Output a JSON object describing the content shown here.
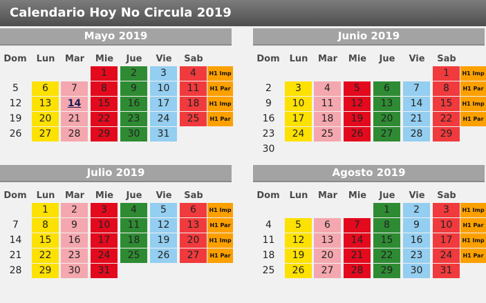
{
  "title": "Calendario Hoy No Circula 2019",
  "days": [
    "Dom",
    "Lun",
    "Mar",
    "Mie",
    "Jue",
    "Vie",
    "Sab"
  ],
  "tags": [
    "H1 Imp",
    "H1 Par",
    "H1 Imp",
    "H1 Par"
  ],
  "colors": {
    "Lun": "#fde100",
    "Mar": "#f4a7ae",
    "Mie": "#e30a1e",
    "Jue": "#2e8b33",
    "Vie": "#94cef0",
    "Sab": "#f03a3d",
    "tag": "#fca000"
  },
  "months": [
    {
      "name": "Mayo 2019",
      "rows": [
        [
          "",
          "",
          "",
          "1",
          "2",
          "3",
          "4"
        ],
        [
          "5",
          "6",
          "7",
          "8",
          "9",
          "10",
          "11"
        ],
        [
          "12",
          "13",
          "14",
          "15",
          "16",
          "17",
          "18"
        ],
        [
          "19",
          "20",
          "21",
          "22",
          "23",
          "24",
          "25"
        ],
        [
          "26",
          "27",
          "28",
          "29",
          "30",
          "31",
          ""
        ]
      ],
      "today": "14"
    },
    {
      "name": "Junio 2019",
      "rows": [
        [
          "",
          "",
          "",
          "",
          "",
          "",
          "1"
        ],
        [
          "2",
          "3",
          "4",
          "5",
          "6",
          "7",
          "8"
        ],
        [
          "9",
          "10",
          "11",
          "12",
          "13",
          "14",
          "15"
        ],
        [
          "16",
          "17",
          "18",
          "19",
          "20",
          "21",
          "22"
        ],
        [
          "23",
          "24",
          "25",
          "26",
          "27",
          "28",
          "29"
        ],
        [
          "30",
          "",
          "",
          "",
          "",
          "",
          ""
        ]
      ]
    },
    {
      "name": "Julio 2019",
      "rows": [
        [
          "",
          "1",
          "2",
          "3",
          "4",
          "5",
          "6"
        ],
        [
          "7",
          "8",
          "9",
          "10",
          "11",
          "12",
          "13"
        ],
        [
          "14",
          "15",
          "16",
          "17",
          "18",
          "19",
          "20"
        ],
        [
          "21",
          "22",
          "23",
          "24",
          "25",
          "26",
          "27"
        ],
        [
          "28",
          "29",
          "30",
          "31",
          "",
          "",
          ""
        ]
      ]
    },
    {
      "name": "Agosto 2019",
      "rows": [
        [
          "",
          "",
          "",
          "",
          "1",
          "2",
          "3"
        ],
        [
          "4",
          "5",
          "6",
          "7",
          "8",
          "9",
          "10"
        ],
        [
          "11",
          "12",
          "13",
          "14",
          "15",
          "16",
          "17"
        ],
        [
          "18",
          "19",
          "20",
          "21",
          "22",
          "23",
          "24"
        ],
        [
          "25",
          "26",
          "27",
          "28",
          "29",
          "30",
          "31"
        ]
      ]
    }
  ]
}
